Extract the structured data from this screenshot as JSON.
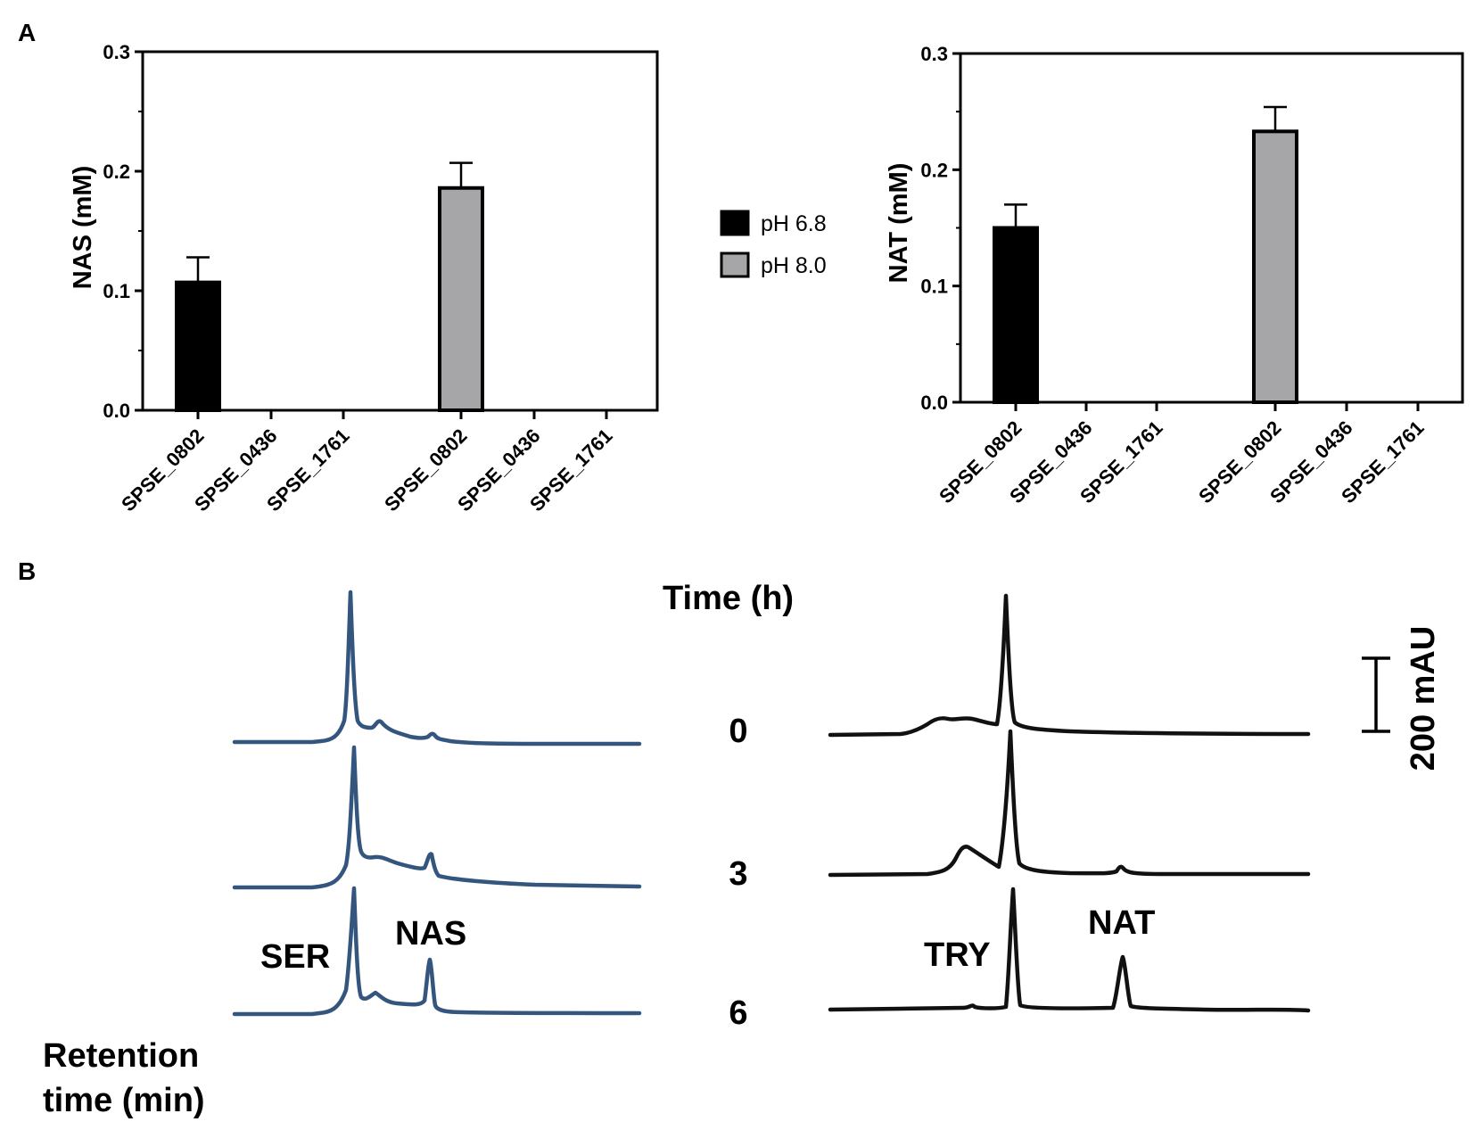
{
  "panels": {
    "a": "A",
    "b": "B"
  },
  "colors": {
    "black_bar": "#000000",
    "gray_bar": "#a6a6a8",
    "ser_trace": "#34567e",
    "try_trace": "#111111"
  },
  "legend": [
    {
      "label": "pH 6.8",
      "color": "#000000"
    },
    {
      "label": "pH 8.0",
      "color": "#a6a6a8"
    }
  ],
  "chart_data": [
    {
      "type": "bar",
      "ylabel": "NAS (mM)",
      "ylim": [
        0,
        0.3
      ],
      "yticks": [
        "0.0",
        "0.1",
        "0.2",
        "0.3"
      ],
      "categories": [
        "SPSE_0802",
        "SPSE_0436",
        "SPSE_1761",
        "SPSE_0802",
        "SPSE_0436",
        "SPSE_1761"
      ],
      "groups": [
        "pH 6.8",
        "pH 6.8",
        "pH 6.8",
        "pH 8.0",
        "pH 8.0",
        "pH 8.0"
      ],
      "values": [
        0.107,
        0,
        0,
        0.186,
        0,
        0
      ],
      "errors": [
        0.021,
        0,
        0,
        0.021,
        0,
        0
      ]
    },
    {
      "type": "bar",
      "ylabel": "NAT (mM)",
      "ylim": [
        0,
        0.3
      ],
      "yticks": [
        "0.0",
        "0.1",
        "0.2",
        "0.3"
      ],
      "categories": [
        "SPSE_0802",
        "SPSE_0436",
        "SPSE_1761",
        "SPSE_0802",
        "SPSE_0436",
        "SPSE_1761"
      ],
      "groups": [
        "pH 6.8",
        "pH 6.8",
        "pH 6.8",
        "pH 8.0",
        "pH 8.0",
        "pH 8.0"
      ],
      "values": [
        0.15,
        0,
        0,
        0.233,
        0,
        0
      ],
      "errors": [
        0.02,
        0,
        0,
        0.021,
        0,
        0
      ]
    }
  ],
  "chromatograms": {
    "time_header": "Time (h)",
    "times": [
      "0",
      "3",
      "6"
    ],
    "left_labels": {
      "ser": "SER",
      "nas": "NAS"
    },
    "right_labels": {
      "try": "TRY",
      "nat": "NAT"
    },
    "xlabel_line1": "Retention",
    "xlabel_line2": "time (min)",
    "scale_label": "200 mAU"
  }
}
